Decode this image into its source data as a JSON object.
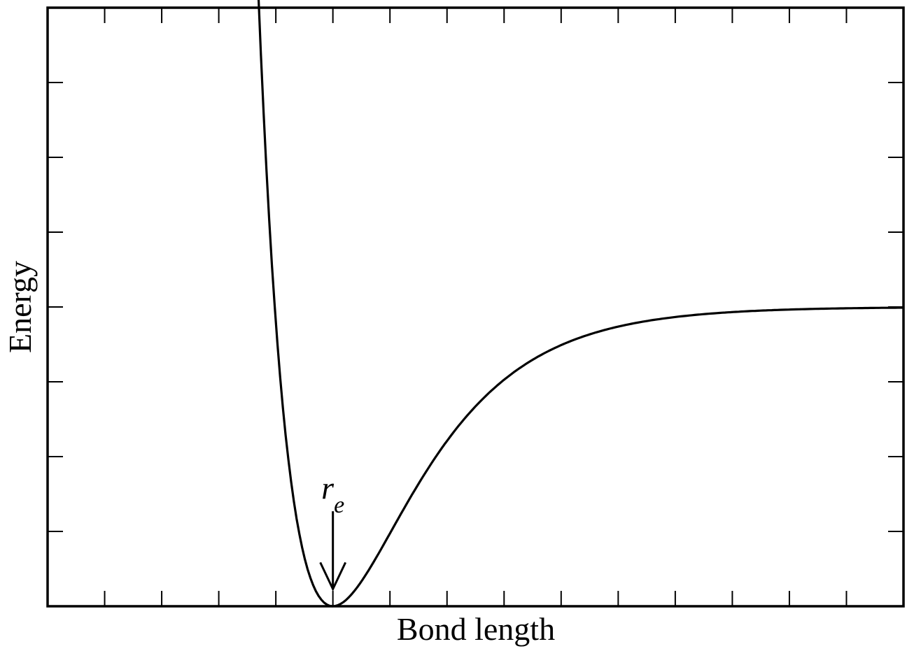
{
  "chart_data": {
    "type": "line",
    "title": "",
    "xlabel": "Bond length",
    "ylabel": "Energy",
    "xlim": [
      0,
      15
    ],
    "ylim": [
      0,
      8
    ],
    "x_tick_count": 15,
    "y_tick_count": 8,
    "tick_labels_shown": false,
    "grid": false,
    "legend": "none",
    "line_color": "#000000",
    "series": [
      {
        "curve": "morse",
        "equilibrium_x": 5,
        "dissociation_energy": 4,
        "min_energy": 0,
        "width_param": 0.68,
        "x_start": 3.45,
        "x_end": 15,
        "samples": 240
      }
    ],
    "annotation": {
      "label_main": "r",
      "label_sub": "e",
      "arrow_x": 5,
      "arrow_y_top": 1.27,
      "arrow_y_bottom": 0.23
    }
  }
}
